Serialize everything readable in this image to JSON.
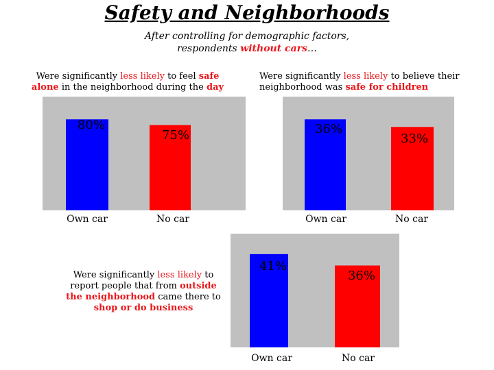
{
  "header": {
    "title": "Safety and Neighborhoods",
    "subtitle_line1": "After controlling for demographic factors,",
    "subtitle_line2_pre": "respondents ",
    "subtitle_line2_hl": "without cars",
    "subtitle_line2_post": "…"
  },
  "captions": {
    "c1": {
      "p1": "Were significantly ",
      "h1": "less likely",
      "p2": " to feel ",
      "h2": "safe",
      "h3": "alone",
      "p3": " in the neighborhood during the ",
      "h4": "day"
    },
    "c2": {
      "p1": "Were significantly ",
      "h1": "less likely",
      "p2": " to believe their",
      "p3": "neighborhood was ",
      "h2": "safe for children"
    },
    "c3": {
      "p1": "Were significantly ",
      "h1": "less likely",
      "p2": " to",
      "p3": "report people that from ",
      "h2": "outside",
      "h3": "the neighborhood",
      "p4": " came there to",
      "h4": "shop or do business"
    }
  },
  "colors": {
    "own_car": "#0000ff",
    "no_car": "#ff0000",
    "plot_bg": "#c0c0c0",
    "highlight": "#e8181c"
  },
  "chart_data": [
    {
      "type": "bar",
      "categories": [
        "Own car",
        "No car"
      ],
      "values": [
        80,
        75
      ],
      "value_labels": [
        "80%",
        "75%"
      ],
      "ylim": [
        0,
        100
      ],
      "grid": false
    },
    {
      "type": "bar",
      "categories": [
        "Own car",
        "No car"
      ],
      "values": [
        36,
        33
      ],
      "value_labels": [
        "36%",
        "33%"
      ],
      "ylim": [
        0,
        45
      ],
      "grid": false
    },
    {
      "type": "bar",
      "categories": [
        "Own car",
        "No car"
      ],
      "values": [
        41,
        36
      ],
      "value_labels": [
        "41%",
        "36%"
      ],
      "ylim": [
        0,
        50
      ],
      "grid": false
    }
  ]
}
